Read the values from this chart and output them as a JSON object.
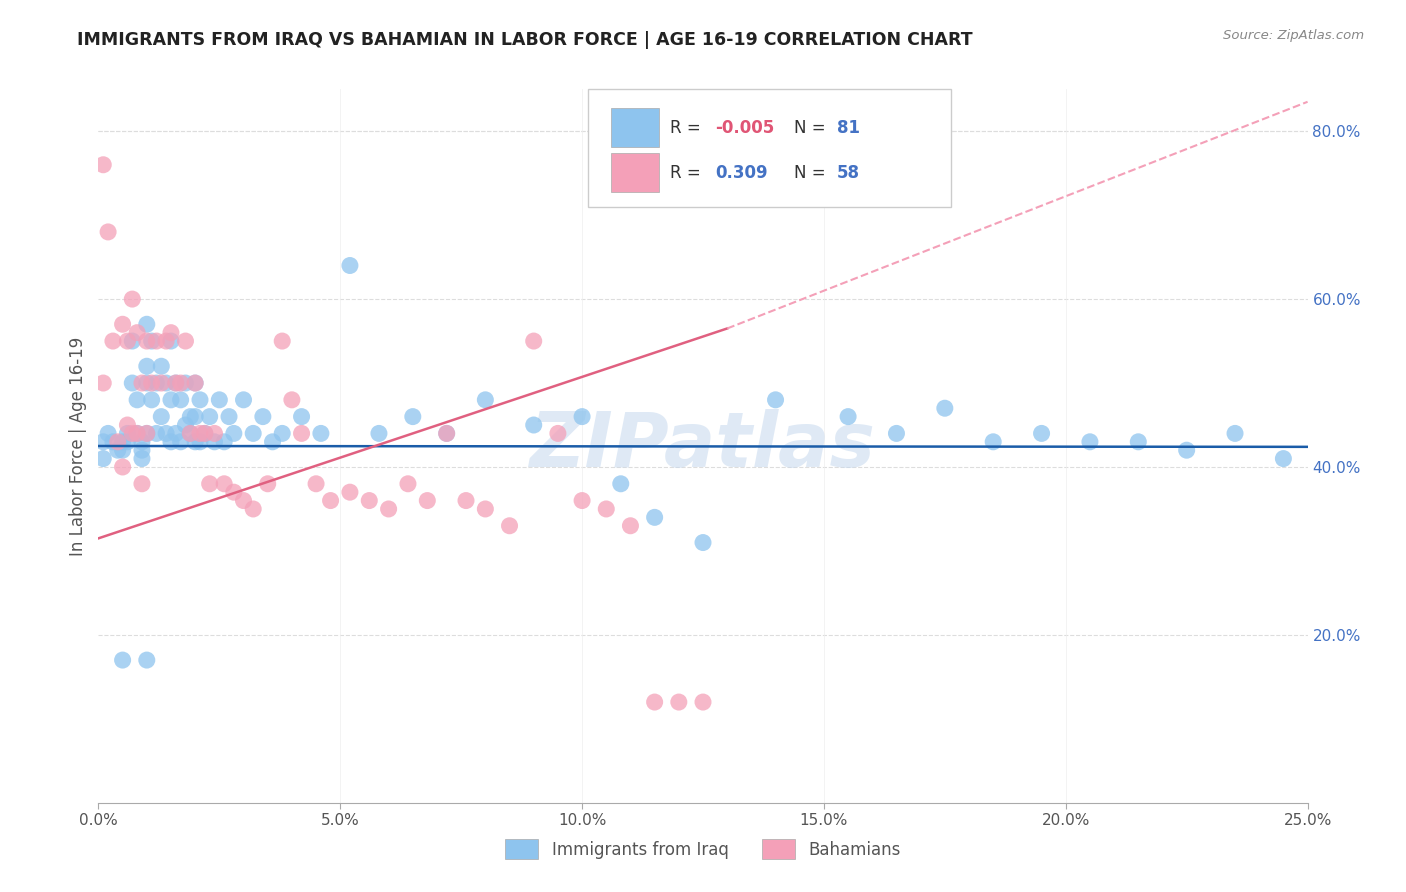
{
  "title": "IMMIGRANTS FROM IRAQ VS BAHAMIAN IN LABOR FORCE | AGE 16-19 CORRELATION CHART",
  "source": "Source: ZipAtlas.com",
  "ylabel_left": "In Labor Force | Age 16-19",
  "xlim": [
    0.0,
    0.25
  ],
  "ylim": [
    0.0,
    0.85
  ],
  "xtick_labels": [
    "0.0%",
    "5.0%",
    "10.0%",
    "15.0%",
    "20.0%",
    "25.0%"
  ],
  "xtick_vals": [
    0.0,
    0.05,
    0.1,
    0.15,
    0.2,
    0.25
  ],
  "ytick_labels_right": [
    "20.0%",
    "40.0%",
    "60.0%",
    "80.0%"
  ],
  "ytick_vals_right": [
    0.2,
    0.4,
    0.6,
    0.8
  ],
  "legend_r_blue": "-0.005",
  "legend_n_blue": "81",
  "legend_r_pink": "0.309",
  "legend_n_pink": "58",
  "color_blue": "#8EC4EE",
  "color_pink": "#F4A0B8",
  "color_blue_line": "#1A5CA8",
  "color_pink_line": "#E06080",
  "color_dashed_line": "#F4A0B8",
  "watermark": "ZIPatlas",
  "blue_scatter_x": [
    0.001,
    0.001,
    0.002,
    0.003,
    0.004,
    0.005,
    0.005,
    0.006,
    0.006,
    0.007,
    0.007,
    0.008,
    0.008,
    0.009,
    0.009,
    0.009,
    0.01,
    0.01,
    0.01,
    0.01,
    0.011,
    0.011,
    0.012,
    0.012,
    0.013,
    0.013,
    0.014,
    0.014,
    0.015,
    0.015,
    0.016,
    0.016,
    0.017,
    0.017,
    0.018,
    0.018,
    0.019,
    0.019,
    0.02,
    0.02,
    0.021,
    0.021,
    0.022,
    0.023,
    0.024,
    0.025,
    0.026,
    0.027,
    0.028,
    0.03,
    0.032,
    0.034,
    0.036,
    0.038,
    0.042,
    0.046,
    0.052,
    0.058,
    0.065,
    0.072,
    0.08,
    0.09,
    0.1,
    0.108,
    0.115,
    0.125,
    0.14,
    0.155,
    0.165,
    0.175,
    0.185,
    0.195,
    0.205,
    0.215,
    0.225,
    0.235,
    0.245,
    0.005,
    0.01,
    0.015,
    0.02
  ],
  "blue_scatter_y": [
    0.43,
    0.41,
    0.44,
    0.43,
    0.42,
    0.43,
    0.42,
    0.44,
    0.43,
    0.55,
    0.5,
    0.48,
    0.44,
    0.43,
    0.42,
    0.41,
    0.57,
    0.52,
    0.5,
    0.44,
    0.55,
    0.48,
    0.5,
    0.44,
    0.52,
    0.46,
    0.5,
    0.44,
    0.55,
    0.48,
    0.5,
    0.44,
    0.48,
    0.43,
    0.5,
    0.45,
    0.46,
    0.44,
    0.5,
    0.46,
    0.48,
    0.43,
    0.44,
    0.46,
    0.43,
    0.48,
    0.43,
    0.46,
    0.44,
    0.48,
    0.44,
    0.46,
    0.43,
    0.44,
    0.46,
    0.44,
    0.64,
    0.44,
    0.46,
    0.44,
    0.48,
    0.45,
    0.46,
    0.38,
    0.34,
    0.31,
    0.48,
    0.46,
    0.44,
    0.47,
    0.43,
    0.44,
    0.43,
    0.43,
    0.42,
    0.44,
    0.41,
    0.17,
    0.17,
    0.43,
    0.43
  ],
  "pink_scatter_x": [
    0.001,
    0.001,
    0.002,
    0.003,
    0.004,
    0.005,
    0.005,
    0.006,
    0.006,
    0.007,
    0.007,
    0.008,
    0.008,
    0.009,
    0.009,
    0.01,
    0.01,
    0.011,
    0.012,
    0.013,
    0.014,
    0.015,
    0.016,
    0.017,
    0.018,
    0.019,
    0.02,
    0.021,
    0.022,
    0.023,
    0.024,
    0.026,
    0.028,
    0.03,
    0.032,
    0.035,
    0.038,
    0.04,
    0.042,
    0.045,
    0.048,
    0.052,
    0.056,
    0.06,
    0.064,
    0.068,
    0.072,
    0.076,
    0.08,
    0.085,
    0.09,
    0.095,
    0.1,
    0.105,
    0.11,
    0.115,
    0.12,
    0.125
  ],
  "pink_scatter_y": [
    0.76,
    0.5,
    0.68,
    0.55,
    0.43,
    0.57,
    0.4,
    0.55,
    0.45,
    0.6,
    0.44,
    0.56,
    0.44,
    0.5,
    0.38,
    0.55,
    0.44,
    0.5,
    0.55,
    0.5,
    0.55,
    0.56,
    0.5,
    0.5,
    0.55,
    0.44,
    0.5,
    0.44,
    0.44,
    0.38,
    0.44,
    0.38,
    0.37,
    0.36,
    0.35,
    0.38,
    0.55,
    0.48,
    0.44,
    0.38,
    0.36,
    0.37,
    0.36,
    0.35,
    0.38,
    0.36,
    0.44,
    0.36,
    0.35,
    0.33,
    0.55,
    0.44,
    0.36,
    0.35,
    0.33,
    0.12,
    0.12,
    0.12
  ],
  "blue_line_x": [
    0.0,
    0.25
  ],
  "blue_line_y": [
    0.425,
    0.424
  ],
  "pink_line_x": [
    0.0,
    0.13
  ],
  "pink_line_y": [
    0.315,
    0.565
  ],
  "dashed_line_x": [
    0.13,
    0.25
  ],
  "dashed_line_y": [
    0.565,
    0.835
  ]
}
